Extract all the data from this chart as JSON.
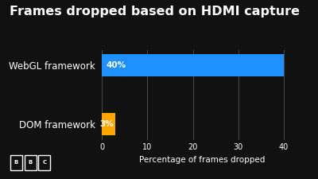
{
  "title": "Frames dropped based on HDMI capture",
  "categories": [
    "WebGL framework",
    "DOM framework"
  ],
  "values": [
    40,
    3
  ],
  "bar_colors": [
    "#1E90FF",
    "#FFA500"
  ],
  "xlabel": "Percentage of frames dropped",
  "xlim": [
    0,
    44
  ],
  "background_color": "#111111",
  "text_color": "#FFFFFF",
  "grid_color": "#555555",
  "title_fontsize": 11.5,
  "label_fontsize": 8.5,
  "tick_fontsize": 7.5,
  "bar_height": 0.38,
  "value_labels": [
    "40%",
    "3%"
  ],
  "xticks": [
    0,
    10,
    20,
    30,
    40
  ],
  "bbc_letters": [
    "B",
    "B",
    "C"
  ]
}
